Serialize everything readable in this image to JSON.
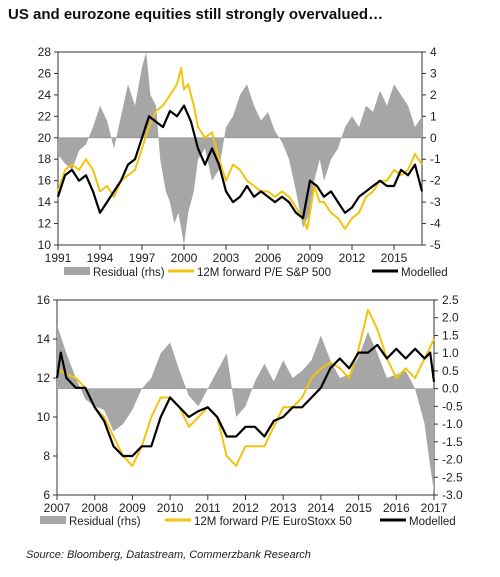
{
  "page": {
    "title": "US and eurozone equities still strongly overvalued…",
    "source": "Source: Bloomberg, Datastream, Commerzbank Research"
  },
  "colors": {
    "residual": "#a6a6a6",
    "forward_pe": "#f2c40f",
    "modelled": "#000000"
  },
  "chart_data": [
    {
      "type": "line",
      "region": "US",
      "x_ticks": [
        "1991",
        "1994",
        "1997",
        "2000",
        "2003",
        "2006",
        "2009",
        "2012",
        "2015"
      ],
      "xlim": [
        1991,
        2017
      ],
      "ylim_left": [
        10,
        28
      ],
      "ylim_right": [
        -5,
        4
      ],
      "yticks_left": [
        10,
        12,
        14,
        16,
        18,
        20,
        22,
        24,
        26,
        28
      ],
      "yticks_right": [
        -5,
        -4,
        -3,
        -2,
        -1,
        0,
        1,
        2,
        3,
        4
      ],
      "grid": false,
      "legend_position": "bottom",
      "series": [
        {
          "name": "Residual (rhs)",
          "kind": "area",
          "axis": "right",
          "x": [
            1991.0,
            1991.5,
            1992.0,
            1992.5,
            1993.0,
            1993.5,
            1994.0,
            1994.5,
            1995.0,
            1995.5,
            1996.0,
            1996.5,
            1997.0,
            1997.3,
            1997.6,
            1998.0,
            1998.3,
            1998.7,
            1999.0,
            1999.3,
            1999.6,
            2000.0,
            2000.3,
            2000.7,
            2001.0,
            2001.5,
            2002.0,
            2002.5,
            2003.0,
            2003.5,
            2004.0,
            2004.5,
            2005.0,
            2005.5,
            2006.0,
            2006.5,
            2007.0,
            2007.5,
            2008.0,
            2008.5,
            2009.0,
            2009.3,
            2009.7,
            2010.0,
            2010.5,
            2011.0,
            2011.5,
            2012.0,
            2012.5,
            2013.0,
            2013.5,
            2014.0,
            2014.5,
            2015.0,
            2015.5,
            2016.0,
            2016.5,
            2017.0
          ],
          "values": [
            -0.8,
            -1.2,
            -1.5,
            -0.6,
            -0.3,
            0.5,
            1.5,
            0.8,
            -0.5,
            1.0,
            2.5,
            1.5,
            3.3,
            4.0,
            2.0,
            1.5,
            -1.0,
            -2.5,
            -3.0,
            -4.0,
            -3.5,
            -5.0,
            -3.5,
            -2.5,
            -1.0,
            -0.5,
            -2.0,
            -1.5,
            0.5,
            1.0,
            2.0,
            2.5,
            1.5,
            0.8,
            1.2,
            0.3,
            -0.2,
            -1.0,
            -2.5,
            -4.2,
            -3.5,
            -2.0,
            -1.0,
            -2.0,
            -1.0,
            -0.5,
            0.5,
            1.0,
            0.5,
            1.5,
            1.2,
            2.2,
            1.5,
            2.5,
            2.0,
            1.5,
            0.5,
            1.0
          ]
        },
        {
          "name": "12M forward P/E S&P 500",
          "kind": "line",
          "axis": "left",
          "x": [
            1991.0,
            1991.5,
            1992.0,
            1992.5,
            1993.0,
            1993.5,
            1994.0,
            1994.5,
            1995.0,
            1995.5,
            1996.0,
            1996.5,
            1997.0,
            1997.5,
            1998.0,
            1998.5,
            1999.0,
            1999.5,
            1999.8,
            2000.0,
            2000.3,
            2000.7,
            2001.0,
            2001.5,
            2002.0,
            2002.5,
            2003.0,
            2003.5,
            2004.0,
            2004.5,
            2005.0,
            2005.5,
            2006.0,
            2006.5,
            2007.0,
            2007.5,
            2008.0,
            2008.5,
            2008.8,
            2009.0,
            2009.3,
            2009.7,
            2010.0,
            2010.5,
            2011.0,
            2011.5,
            2012.0,
            2012.5,
            2013.0,
            2013.5,
            2014.0,
            2014.5,
            2015.0,
            2015.5,
            2016.0,
            2016.5,
            2017.0
          ],
          "values": [
            15.0,
            17.0,
            17.5,
            17.0,
            18.0,
            17.0,
            15.0,
            15.5,
            14.5,
            16.0,
            16.5,
            17.0,
            19.0,
            21.0,
            22.5,
            23.0,
            24.0,
            25.0,
            26.5,
            24.5,
            25.0,
            23.0,
            21.0,
            20.0,
            20.5,
            18.0,
            16.0,
            17.5,
            17.0,
            16.0,
            15.5,
            15.0,
            15.0,
            14.5,
            15.0,
            14.5,
            13.5,
            12.5,
            11.5,
            13.0,
            15.5,
            14.0,
            14.0,
            13.0,
            12.5,
            11.5,
            12.5,
            13.0,
            14.5,
            15.0,
            16.0,
            16.0,
            17.0,
            16.5,
            17.0,
            18.5,
            17.5
          ]
        },
        {
          "name": "Modelled",
          "kind": "line",
          "axis": "left",
          "x": [
            1991.0,
            1991.5,
            1992.0,
            1992.5,
            1993.0,
            1993.5,
            1994.0,
            1994.5,
            1995.0,
            1995.5,
            1996.0,
            1996.5,
            1997.0,
            1997.5,
            1998.0,
            1998.5,
            1999.0,
            1999.5,
            2000.0,
            2000.5,
            2001.0,
            2001.5,
            2002.0,
            2002.5,
            2003.0,
            2003.5,
            2004.0,
            2004.5,
            2005.0,
            2005.5,
            2006.0,
            2006.5,
            2007.0,
            2007.5,
            2008.0,
            2008.5,
            2009.0,
            2009.5,
            2010.0,
            2010.5,
            2011.0,
            2011.5,
            2012.0,
            2012.5,
            2013.0,
            2013.5,
            2014.0,
            2014.5,
            2015.0,
            2015.5,
            2016.0,
            2016.5,
            2017.0
          ],
          "values": [
            14.5,
            16.5,
            17.0,
            16.0,
            16.5,
            15.0,
            13.0,
            14.0,
            15.0,
            16.0,
            17.5,
            18.0,
            20.0,
            22.0,
            21.5,
            21.0,
            22.5,
            22.0,
            23.0,
            21.5,
            19.0,
            17.5,
            19.0,
            17.5,
            15.0,
            14.0,
            14.5,
            15.5,
            14.5,
            15.0,
            14.5,
            14.0,
            14.5,
            14.0,
            13.0,
            12.5,
            16.0,
            15.5,
            14.5,
            15.0,
            14.0,
            13.0,
            13.5,
            14.5,
            15.0,
            15.5,
            16.0,
            15.5,
            15.5,
            17.0,
            16.5,
            17.5,
            15.0
          ]
        }
      ],
      "legend": [
        "Residual (rhs)",
        "12M forward P/E S&P 500",
        "Modelled"
      ]
    },
    {
      "type": "line",
      "region": "Eurozone",
      "x_ticks": [
        "2007",
        "2008",
        "2009",
        "2010",
        "2011",
        "2012",
        "2013",
        "2014",
        "2015",
        "2016",
        "2017"
      ],
      "xlim": [
        2007,
        2017
      ],
      "ylim_left": [
        6,
        16
      ],
      "ylim_right": [
        -3.0,
        2.5
      ],
      "yticks_left": [
        6,
        8,
        10,
        12,
        14,
        16
      ],
      "yticks_right": [
        -3.0,
        -2.5,
        -2.0,
        -1.5,
        -1.0,
        -0.5,
        0.0,
        0.5,
        1.0,
        1.5,
        2.0,
        2.5
      ],
      "grid": false,
      "legend_position": "bottom",
      "series": [
        {
          "name": "Residual (rhs)",
          "kind": "area",
          "axis": "right",
          "x": [
            2007.0,
            2007.25,
            2007.5,
            2007.75,
            2008.0,
            2008.25,
            2008.5,
            2008.75,
            2009.0,
            2009.25,
            2009.5,
            2009.75,
            2010.0,
            2010.25,
            2010.5,
            2010.75,
            2011.0,
            2011.25,
            2011.5,
            2011.75,
            2012.0,
            2012.25,
            2012.5,
            2012.75,
            2013.0,
            2013.25,
            2013.5,
            2013.75,
            2014.0,
            2014.25,
            2014.5,
            2014.75,
            2015.0,
            2015.25,
            2015.5,
            2015.75,
            2016.0,
            2016.25,
            2016.5,
            2016.75,
            2016.9,
            2017.0
          ],
          "values": [
            1.8,
            1.0,
            0.3,
            -0.3,
            -0.5,
            -0.6,
            -1.2,
            -1.0,
            -0.6,
            0.0,
            0.3,
            1.0,
            1.3,
            0.5,
            -0.2,
            -0.5,
            0.0,
            0.5,
            1.0,
            -0.8,
            -0.5,
            0.2,
            0.7,
            0.2,
            0.8,
            0.3,
            0.5,
            0.8,
            1.5,
            0.8,
            0.3,
            0.4,
            0.9,
            1.6,
            1.0,
            0.3,
            0.4,
            0.5,
            0.0,
            -1.0,
            -2.2,
            -2.9
          ]
        },
        {
          "name": "12M forward P/E EuroStoxx 50",
          "kind": "line",
          "axis": "left",
          "x": [
            2007.0,
            2007.25,
            2007.5,
            2007.75,
            2008.0,
            2008.25,
            2008.5,
            2008.75,
            2009.0,
            2009.25,
            2009.5,
            2009.75,
            2010.0,
            2010.25,
            2010.5,
            2010.75,
            2011.0,
            2011.25,
            2011.5,
            2011.75,
            2012.0,
            2012.25,
            2012.5,
            2012.75,
            2013.0,
            2013.25,
            2013.5,
            2013.75,
            2014.0,
            2014.25,
            2014.5,
            2014.75,
            2015.0,
            2015.25,
            2015.5,
            2015.75,
            2016.0,
            2016.25,
            2016.5,
            2016.75,
            2017.0
          ],
          "values": [
            12.5,
            12.2,
            12.0,
            11.5,
            10.5,
            10.0,
            9.0,
            8.0,
            7.5,
            8.5,
            10.0,
            11.0,
            11.0,
            10.5,
            9.5,
            10.0,
            10.5,
            10.0,
            8.0,
            7.5,
            8.5,
            8.5,
            8.5,
            9.5,
            10.5,
            10.5,
            11.0,
            12.0,
            12.5,
            12.8,
            12.5,
            12.0,
            13.5,
            15.5,
            14.5,
            13.0,
            12.0,
            12.5,
            12.0,
            13.0,
            14.0
          ]
        },
        {
          "name": "Modelled",
          "kind": "line",
          "axis": "left",
          "x": [
            2007.0,
            2007.1,
            2007.25,
            2007.5,
            2007.75,
            2008.0,
            2008.25,
            2008.5,
            2008.75,
            2009.0,
            2009.25,
            2009.5,
            2009.75,
            2010.0,
            2010.25,
            2010.5,
            2010.75,
            2011.0,
            2011.25,
            2011.5,
            2011.75,
            2012.0,
            2012.25,
            2012.5,
            2012.75,
            2013.0,
            2013.25,
            2013.5,
            2013.75,
            2014.0,
            2014.25,
            2014.5,
            2014.75,
            2015.0,
            2015.25,
            2015.5,
            2015.75,
            2016.0,
            2016.25,
            2016.5,
            2016.75,
            2016.9,
            2017.0
          ],
          "values": [
            12.0,
            13.3,
            12.0,
            11.5,
            11.5,
            10.5,
            9.8,
            8.5,
            8.0,
            8.0,
            8.5,
            8.5,
            10.0,
            11.0,
            10.5,
            10.0,
            10.3,
            10.5,
            10.0,
            9.0,
            9.0,
            9.5,
            9.5,
            9.0,
            9.8,
            10.0,
            10.5,
            10.5,
            11.0,
            11.5,
            12.5,
            13.0,
            12.5,
            13.3,
            13.3,
            13.7,
            13.0,
            13.5,
            13.0,
            13.5,
            13.0,
            13.3,
            11.8
          ]
        }
      ],
      "legend": [
        "Residual (rhs)",
        "12M forward P/E EuroStoxx 50",
        "Modelled"
      ]
    }
  ]
}
